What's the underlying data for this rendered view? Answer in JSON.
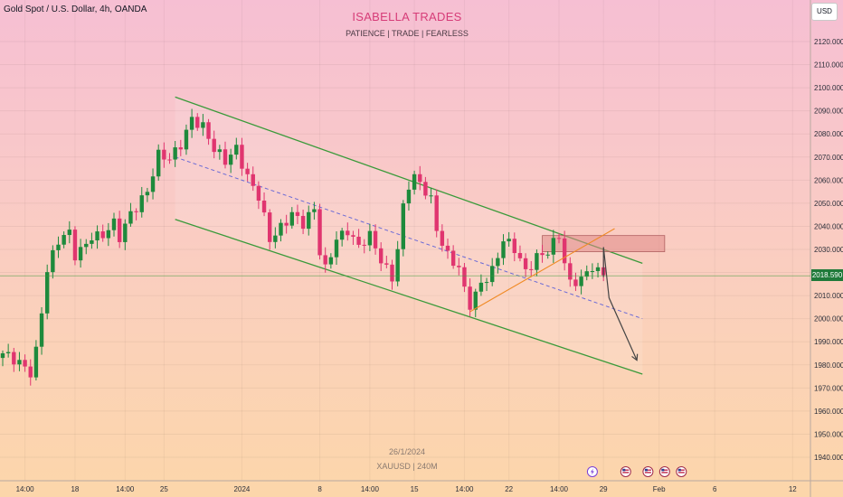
{
  "header": {
    "symbol_label": "Gold Spot / U.S. Dollar, 4h, OANDA",
    "brand_title": "ISABELLA TRADES",
    "brand_subtitle": "PATIENCE  |  TRADE  |  FEARLESS",
    "currency_button": "USD"
  },
  "watermark": {
    "date": "26/1/2024",
    "symbol": "XAUUSD | 240M"
  },
  "current_price": "2018.590",
  "colors": {
    "bullish": "#1e8a3c",
    "bearish": "#e0356f",
    "channel": "#3a9a3a",
    "midline": "#6b6bd6",
    "trendline": "#f08a24",
    "zone_fill": "#e08a88",
    "projection": "#444444",
    "price_tag": "#1f7a3a"
  },
  "chart_data": {
    "type": "candlestick",
    "ylim": [
      1935,
      2128
    ],
    "y_ticks": [
      "2120.000",
      "2110.000",
      "2100.000",
      "2090.000",
      "2080.000",
      "2070.000",
      "2060.000",
      "2050.000",
      "2040.000",
      "2030.000",
      "2020.000",
      "2010.000",
      "2000.000",
      "1990.000",
      "1980.000",
      "1970.000",
      "1960.000",
      "1950.000",
      "1940.000"
    ],
    "y_tick_values": [
      2120,
      2110,
      2100,
      2090,
      2080,
      2070,
      2060,
      2050,
      2040,
      2030,
      2020,
      2010,
      2000,
      1990,
      1980,
      1970,
      1960,
      1950,
      1940
    ],
    "x_ticks": [
      "14:00",
      "18",
      "14:00",
      "25",
      "2024",
      "8",
      "14:00",
      "15",
      "14:00",
      "22",
      "14:00",
      "29",
      "Feb",
      "6",
      "12"
    ],
    "x_tick_bar": [
      4,
      13,
      22,
      29,
      43,
      57,
      66,
      74,
      83,
      91,
      100,
      108,
      118,
      128,
      142
    ],
    "bar_count": 146,
    "last_price": 2018.59,
    "anchors": [
      [
        0,
        1985
      ],
      [
        2,
        1981
      ],
      [
        5,
        1977
      ],
      [
        6,
        1987
      ],
      [
        8,
        2022
      ],
      [
        10,
        2033
      ],
      [
        12,
        2036
      ],
      [
        13,
        2027
      ],
      [
        14,
        2030
      ],
      [
        16,
        2037
      ],
      [
        18,
        2036
      ],
      [
        20,
        2040
      ],
      [
        21,
        2034
      ],
      [
        23,
        2046
      ],
      [
        25,
        2053
      ],
      [
        26,
        2056
      ],
      [
        28,
        2070
      ],
      [
        30,
        2068
      ],
      [
        32,
        2076
      ],
      [
        34,
        2088
      ],
      [
        36,
        2083
      ],
      [
        38,
        2072
      ],
      [
        40,
        2068
      ],
      [
        42,
        2075
      ],
      [
        44,
        2062
      ],
      [
        46,
        2052
      ],
      [
        48,
        2033
      ],
      [
        50,
        2040
      ],
      [
        52,
        2047
      ],
      [
        54,
        2041
      ],
      [
        56,
        2046
      ],
      [
        57,
        2028
      ],
      [
        58,
        2021
      ],
      [
        60,
        2036
      ],
      [
        62,
        2039
      ],
      [
        64,
        2030
      ],
      [
        66,
        2035
      ],
      [
        68,
        2026
      ],
      [
        70,
        2019
      ],
      [
        71,
        2031
      ],
      [
        72,
        2048
      ],
      [
        73,
        2057
      ],
      [
        74,
        2060
      ],
      [
        76,
        2055
      ],
      [
        77,
        2052
      ],
      [
        78,
        2040
      ],
      [
        80,
        2028
      ],
      [
        82,
        2021
      ],
      [
        83,
        2011
      ],
      [
        84,
        2005
      ],
      [
        85,
        2010
      ],
      [
        86,
        2016
      ],
      [
        88,
        2022
      ],
      [
        90,
        2034
      ],
      [
        92,
        2029
      ],
      [
        94,
        2020
      ],
      [
        96,
        2028
      ],
      [
        98,
        2030
      ],
      [
        100,
        2035
      ],
      [
        101,
        2023
      ],
      [
        102,
        2014
      ],
      [
        104,
        2018
      ],
      [
        106,
        2024
      ],
      [
        107,
        2021
      ],
      [
        108,
        2019
      ]
    ],
    "channel": {
      "upper": [
        [
          31,
          2096
        ],
        [
          115,
          2024
        ]
      ],
      "lower": [
        [
          31,
          2043
        ],
        [
          115,
          1976
        ]
      ],
      "midline": [
        [
          31,
          2070
        ],
        [
          115,
          2000
        ]
      ]
    },
    "rising_trendline": [
      [
        84,
        2003
      ],
      [
        110,
        2039
      ]
    ],
    "resistance_zone": {
      "x_from": 97,
      "x_to": 119,
      "price_low": 2029,
      "price_high": 2036
    },
    "projection_path": [
      [
        108,
        2018
      ],
      [
        108,
        2031
      ],
      [
        109,
        2009
      ],
      [
        114,
        1982
      ]
    ],
    "events": [
      {
        "bar": 106,
        "kind": "lightning"
      },
      {
        "bar": 112,
        "kind": "us-flag"
      },
      {
        "bar": 116,
        "kind": "us-flag"
      },
      {
        "bar": 119,
        "kind": "us-flag"
      },
      {
        "bar": 122,
        "kind": "us-flag"
      }
    ]
  }
}
